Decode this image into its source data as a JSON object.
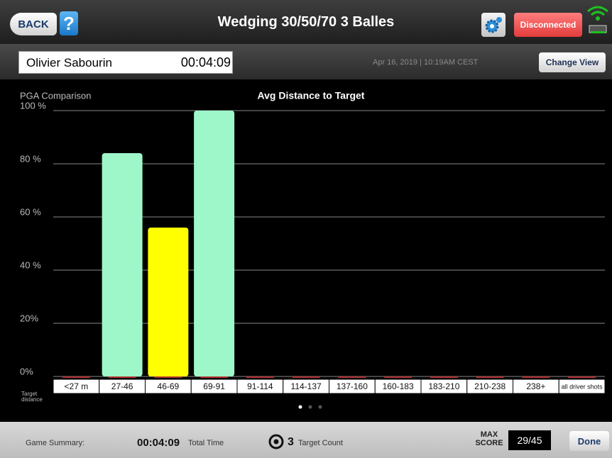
{
  "header": {
    "back": "BACK",
    "help": "?",
    "title": "Wedging 30/50/70 3 Balles",
    "status": "Disconnected"
  },
  "session": {
    "player": "Olivier Sabourin",
    "time": "00:04:09",
    "date": "Apr 16, 2019 | 10:19AM CEST",
    "change_view": "Change View"
  },
  "chart_data": {
    "type": "bar",
    "title": "Avg Distance to Target",
    "subtitle": "PGA Comparison",
    "x_label": "Target distance",
    "categories": [
      "<27 m",
      "27-46",
      "46-69",
      "69-91",
      "91-114",
      "114-137",
      "137-160",
      "160-183",
      "183-210",
      "210-238",
      "238+",
      "all driver shots"
    ],
    "values": [
      0,
      84,
      56,
      100,
      0,
      0,
      0,
      0,
      0,
      0,
      0,
      0
    ],
    "colors": [
      "#9ef7c9",
      "#9ef7c9",
      "#ffff00",
      "#9ef7c9",
      "#9ef7c9",
      "#9ef7c9",
      "#9ef7c9",
      "#9ef7c9",
      "#9ef7c9",
      "#9ef7c9",
      "#9ef7c9",
      "#9ef7c9"
    ],
    "ylim": [
      0,
      100
    ],
    "yticks": [
      {
        "value": 0,
        "label": "0%"
      },
      {
        "value": 20,
        "label": "20%"
      },
      {
        "value": 40,
        "label": "40 %"
      },
      {
        "value": 60,
        "label": "60 %"
      },
      {
        "value": 80,
        "label": "80 %"
      },
      {
        "value": 100,
        "label": "100 %"
      }
    ],
    "grid": true
  },
  "footer": {
    "summary": "Game Summary:",
    "total_time": "00:04:09",
    "total_time_label": "Total Time",
    "target_count": "3",
    "target_count_label": "Target Count",
    "max_score_label": "MAX SCORE",
    "score": "29/45",
    "done": "Done"
  }
}
